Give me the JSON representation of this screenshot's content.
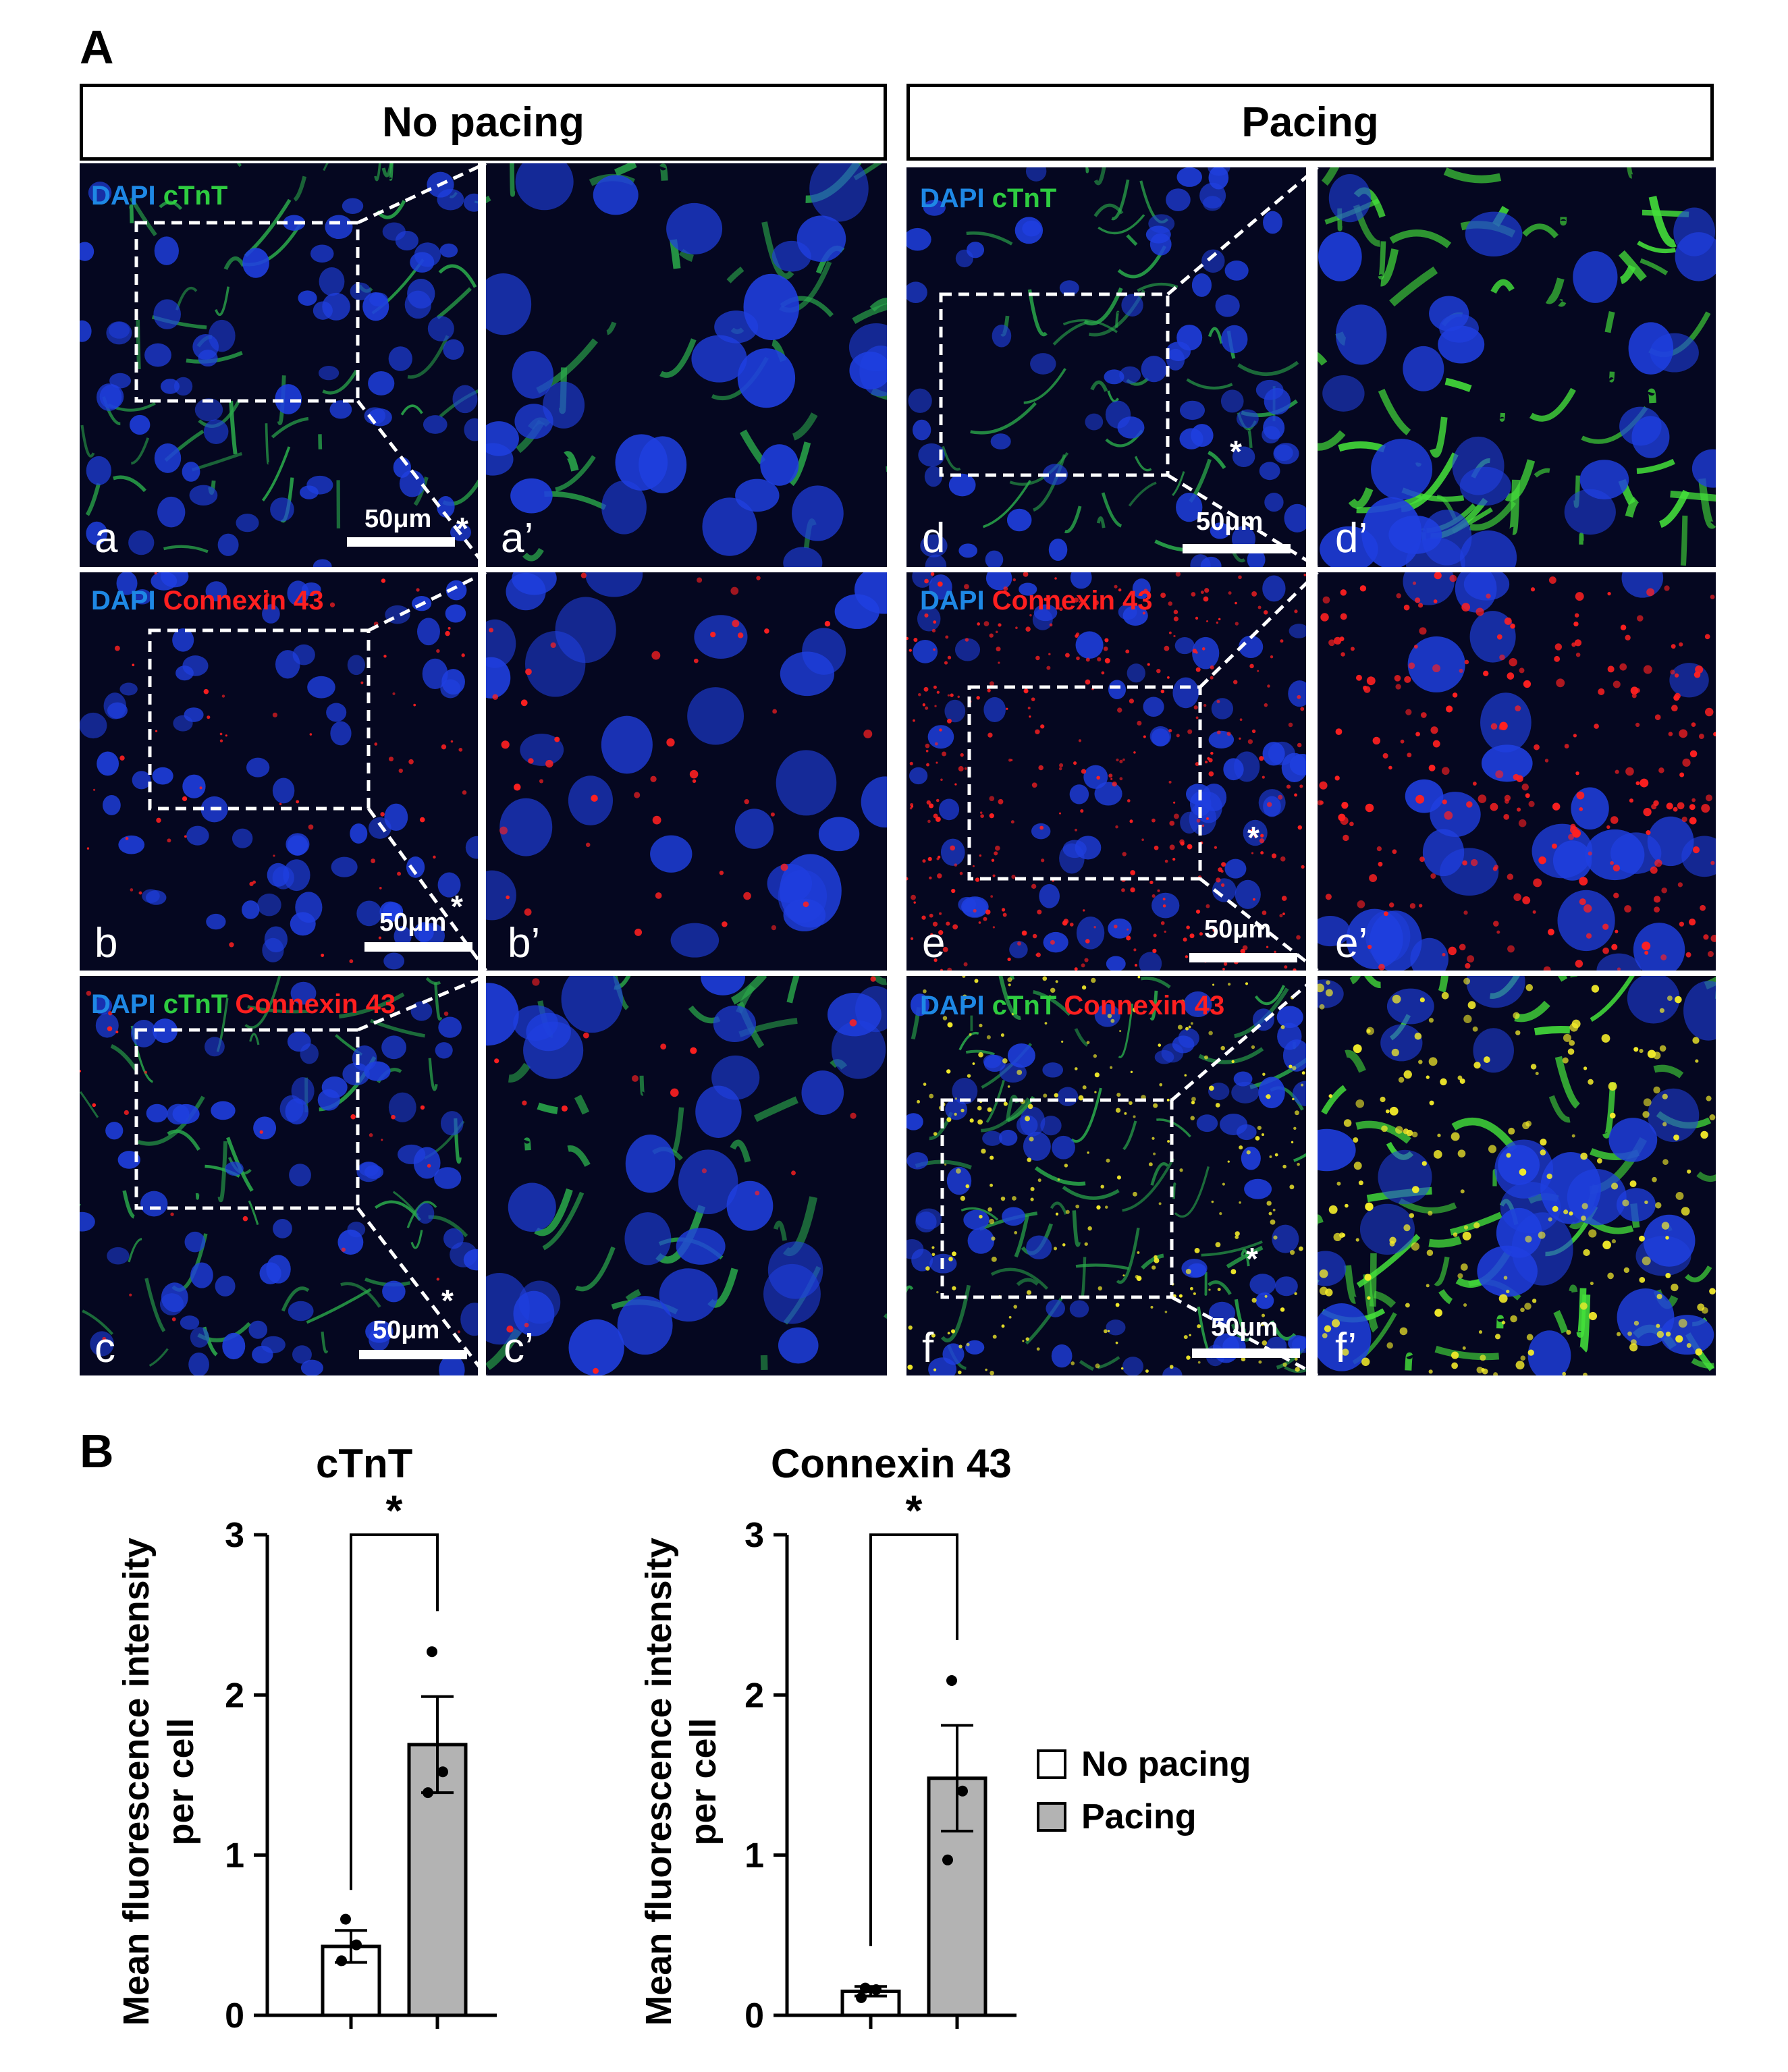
{
  "panel_a_label": "A",
  "panel_b_label": "B",
  "groups": {
    "no_pacing": "No pacing",
    "pacing": "Pacing"
  },
  "channels": {
    "dapi": "DAPI",
    "ctnt": "cTnT",
    "cx43": "Connexin 43"
  },
  "colors": {
    "dapi": "#1e88e5",
    "ctnt": "#2ecc40",
    "cx43": "#ff1f1f",
    "bar_no_pacing": "#ffffff",
    "bar_pacing": "#b3b3b3"
  },
  "subpanels": {
    "a": "a",
    "a_p": "a’",
    "b": "b",
    "b_p": "b’",
    "c": "c",
    "c_p": "c’",
    "d": "d",
    "d_p": "d’",
    "e": "e",
    "e_p": "e’",
    "f": "f",
    "f_p": "f’"
  },
  "scale_bar": "50μm",
  "asterisk": "*",
  "legend": {
    "no_pacing": "No pacing",
    "pacing": "Pacing"
  },
  "chart_data": [
    {
      "type": "bar",
      "title": "cTnT",
      "ylabel": "Mean fluorescence intensity per cell",
      "ylabel_lines": [
        "Mean fluorescence intensity",
        "per cell"
      ],
      "categories": [
        "No pacing",
        "Pacing"
      ],
      "values": [
        0.43,
        1.69
      ],
      "error": [
        0.1,
        0.3
      ],
      "points": [
        [
          0.6,
          0.44,
          0.34
        ],
        [
          2.27,
          1.52,
          1.39
        ]
      ],
      "ylim": [
        0,
        3
      ],
      "yticks": [
        0,
        1,
        2,
        3
      ],
      "significance": "*"
    },
    {
      "type": "bar",
      "title": "Connexin 43",
      "ylabel": "Mean fluorescence intensity per cell",
      "ylabel_lines": [
        "Mean fluorescence intensity",
        "per cell"
      ],
      "categories": [
        "No pacing",
        "Pacing"
      ],
      "values": [
        0.15,
        1.48
      ],
      "error": [
        0.03,
        0.33
      ],
      "points": [
        [
          0.17,
          0.16,
          0.11
        ],
        [
          2.09,
          1.4,
          0.97
        ]
      ],
      "ylim": [
        0,
        3
      ],
      "yticks": [
        0,
        1,
        2,
        3
      ],
      "significance": "*"
    }
  ]
}
